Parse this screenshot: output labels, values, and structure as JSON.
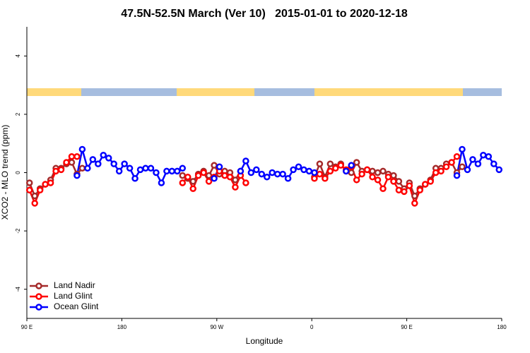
{
  "chart_data": {
    "type": "line",
    "title": "47.5N-52.5N March (Ver 10)   2015-01-01 to 2020-12-18",
    "x_label": "Longitude",
    "y_label": "XCO2 - MLO trend (ppm)",
    "xlim": [
      90,
      540
    ],
    "xticks": [
      {
        "value": 90,
        "label": "90 E"
      },
      180,
      {
        "value": 270,
        "label": "90 W"
      },
      {
        "value": 360,
        "label": "0"
      },
      {
        "value": 450,
        "label": "90 E"
      },
      {
        "value": 540,
        "label": "180"
      }
    ],
    "ylim": [
      -5,
      5
    ],
    "yticks": [
      -4,
      -2,
      0,
      2,
      4
    ],
    "legend": "bottomleft",
    "series": [
      {
        "name": "Land Nadir",
        "color": "#a52a2a",
        "x": [
          92.5,
          97.5,
          102.5,
          107.5,
          112.5,
          117.5,
          122.5,
          127.5,
          132.5,
          137.5,
          142.5,
          190,
          237.5,
          242.5,
          247.5,
          252.5,
          257.5,
          262.5,
          267.5,
          272.5,
          277.5,
          282.5,
          287.5,
          292.5,
          327.5,
          362.5,
          367.5,
          372.5,
          377.5,
          382.5,
          387.5,
          392.5,
          397.5,
          402.5,
          407.5,
          412.5,
          417.5,
          422.5,
          427.5,
          432.5,
          437.5,
          442.5,
          447.5,
          452.5,
          457.5,
          462.5,
          467.5,
          472.5,
          477.5,
          482.5,
          487.5,
          492.5,
          497.5,
          502.5
        ],
        "values": [
          -0.35,
          -0.8,
          -0.55,
          -0.4,
          -0.25,
          0.15,
          0.15,
          0.3,
          0.35,
          -0.05,
          0.15,
          null,
          -0.1,
          -0.2,
          -0.3,
          -0.05,
          0.05,
          -0.1,
          0.25,
          -0.05,
          0.05,
          0,
          -0.25,
          0.05,
          null,
          -0.15,
          0.3,
          -0.15,
          0.3,
          0.2,
          0.3,
          0.05,
          0,
          0.35,
          0.05,
          0.1,
          0.05,
          0,
          0.05,
          -0.05,
          -0.1,
          -0.3,
          -0.55,
          -0.35,
          -0.8,
          -0.55,
          -0.4,
          -0.25,
          0.15,
          0.15,
          0.3,
          0.35,
          0,
          0.2
        ]
      },
      {
        "name": "Land Glint",
        "color": "#ff0000",
        "x": [
          92.5,
          97.5,
          102.5,
          107.5,
          112.5,
          117.5,
          122.5,
          127.5,
          132.5,
          137.5,
          187.5,
          237.5,
          242.5,
          247.5,
          252.5,
          257.5,
          262.5,
          267.5,
          272.5,
          277.5,
          282.5,
          287.5,
          292.5,
          297.5,
          330,
          362.5,
          367.5,
          372.5,
          377.5,
          382.5,
          387.5,
          392.5,
          397.5,
          402.5,
          407.5,
          412.5,
          417.5,
          422.5,
          427.5,
          432.5,
          437.5,
          442.5,
          447.5,
          452.5,
          457.5,
          462.5,
          467.5,
          472.5,
          477.5,
          482.5,
          487.5,
          492.5,
          497.5
        ],
        "values": [
          -0.6,
          -1.05,
          -0.6,
          -0.4,
          -0.35,
          0.05,
          0.1,
          0.35,
          0.55,
          0.55,
          null,
          -0.35,
          -0.15,
          -0.55,
          -0.1,
          0,
          -0.3,
          -0.15,
          0.05,
          -0.1,
          -0.15,
          -0.5,
          -0.1,
          -0.35,
          null,
          -0.2,
          -0.05,
          -0.2,
          0.05,
          0.15,
          0.25,
          0.1,
          0.2,
          -0.25,
          -0.05,
          0.1,
          -0.15,
          -0.25,
          -0.55,
          -0.15,
          -0.3,
          -0.6,
          -0.65,
          -0.45,
          -1.05,
          -0.6,
          -0.4,
          -0.3,
          0,
          0.05,
          0.2,
          0.35,
          0.55
        ]
      },
      {
        "name": "Ocean Glint",
        "color": "#0000ff",
        "x": [
          137.5,
          142.5,
          147.5,
          152.5,
          157.5,
          162.5,
          167.5,
          172.5,
          177.5,
          182.5,
          187.5,
          192.5,
          197.5,
          202.5,
          207.5,
          212.5,
          217.5,
          222.5,
          227.5,
          232.5,
          237.5,
          252.5,
          267.5,
          272.5,
          282.5,
          292.5,
          297.5,
          302.5,
          307.5,
          312.5,
          317.5,
          322.5,
          327.5,
          332.5,
          337.5,
          342.5,
          347.5,
          352.5,
          357.5,
          362.5,
          377.5,
          392.5,
          397.5,
          447.5,
          497.5,
          502.5,
          507.5,
          512.5,
          517.5,
          522.5,
          527.5,
          532.5,
          537.5
        ],
        "values": [
          -0.1,
          0.8,
          0.15,
          0.45,
          0.3,
          0.6,
          0.5,
          0.3,
          0.05,
          0.3,
          0.15,
          -0.2,
          0.1,
          0.15,
          0.15,
          0,
          -0.35,
          0.05,
          0.05,
          0.05,
          0.15,
          null,
          -0.2,
          0.2,
          null,
          0.05,
          0.4,
          0,
          0.1,
          -0.05,
          -0.15,
          0,
          -0.05,
          -0.05,
          -0.2,
          0.1,
          0.2,
          0.1,
          0.05,
          0,
          null,
          0.05,
          0.25,
          null,
          -0.1,
          0.8,
          0.1,
          0.45,
          0.3,
          0.6,
          0.55,
          0.3,
          0.1
        ]
      }
    ]
  }
}
